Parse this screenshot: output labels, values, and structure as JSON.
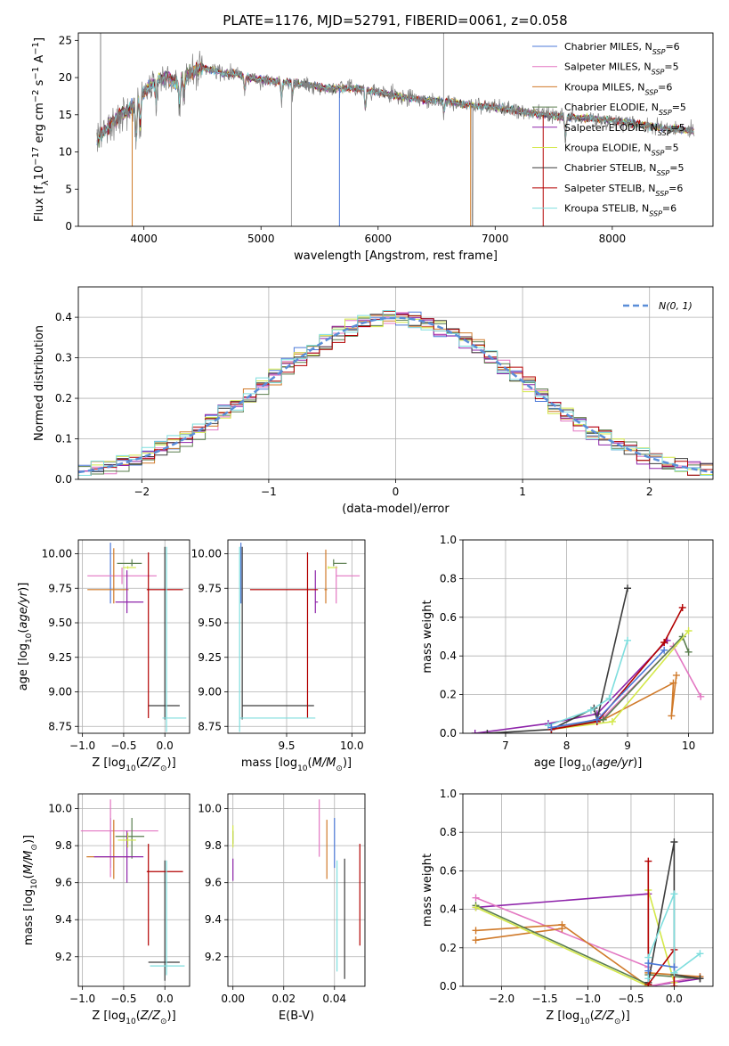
{
  "figure": {
    "title": "PLATE=1176, MJD=52791, FIBERID=0061, z=0.058",
    "model_colors": [
      "#4c79d8",
      "#e377c2",
      "#d07a2a",
      "#5a7d4e",
      "#8e24aa",
      "#d4e84a",
      "#3c3c3c",
      "#b30000",
      "#7fdede"
    ]
  },
  "chart_data": [
    {
      "id": "spectrum",
      "type": "line",
      "title": "PLATE=1176, MJD=52791, FIBERID=0061, z=0.058",
      "xlabel": "wavelength [Angstrom, rest frame]",
      "ylabel": "Flux [f_λ 10^-17 erg cm^-2 s^-1 A^-1]",
      "xlim": [
        3440,
        8860
      ],
      "ylim": [
        0,
        26
      ],
      "xticks": [
        "4000",
        "5000",
        "6000",
        "7000",
        "8000"
      ],
      "yticks": [
        "0",
        "5",
        "10",
        "15",
        "20",
        "25"
      ],
      "grid": false,
      "legend_position": "top-right",
      "data_color": "#808080",
      "continuum": {
        "x": [
          3600,
          3700,
          3800,
          3900,
          4000,
          4100,
          4200,
          4300,
          4400,
          4500,
          4600,
          4700,
          4800,
          4900,
          5000,
          5200,
          5400,
          5600,
          5800,
          6000,
          6200,
          6400,
          6600,
          6800,
          7000,
          7200,
          7400,
          7600,
          7800,
          8000,
          8200,
          8400,
          8600,
          8700
        ],
        "y": [
          11.5,
          13.5,
          15.0,
          15.8,
          18.0,
          19.5,
          20.0,
          19.3,
          20.5,
          21.3,
          21.0,
          20.5,
          20.5,
          20.0,
          19.7,
          19.5,
          19.0,
          18.5,
          18.6,
          18.0,
          17.4,
          17.0,
          16.8,
          16.3,
          16.0,
          15.5,
          15.0,
          14.7,
          14.5,
          14.3,
          13.8,
          13.3,
          13.0,
          12.8
        ]
      },
      "series": [
        {
          "name": "Chabrier MILES, N_SSP=6",
          "color": "#4c79d8"
        },
        {
          "name": "Salpeter MILES, N_SSP=5",
          "color": "#e377c2"
        },
        {
          "name": "Kroupa MILES, N_SSP=6",
          "color": "#d07a2a"
        },
        {
          "name": "Chabrier ELODIE, N_SSP=5",
          "color": "#5a7d4e"
        },
        {
          "name": "Salpeter ELODIE, N_SSP=5",
          "color": "#8e24aa"
        },
        {
          "name": "Kroupa ELODIE, N_SSP=5",
          "color": "#d4e84a"
        },
        {
          "name": "Chabrier STELIB, N_SSP=5",
          "color": "#3c3c3c"
        },
        {
          "name": "Salpeter STELIB, N_SSP=6",
          "color": "#b30000"
        },
        {
          "name": "Kroupa STELIB, N_SSP=6",
          "color": "#7fdede"
        }
      ]
    },
    {
      "id": "residuals",
      "type": "histogram",
      "xlabel": "(data-model)/error",
      "ylabel": "Normed distribution",
      "xlim": [
        -2.5,
        2.5
      ],
      "ylim": [
        0,
        0.475
      ],
      "xticks": [
        "−2",
        "−1",
        "0",
        "1",
        "2"
      ],
      "yticks": [
        "0.0",
        "0.1",
        "0.2",
        "0.3",
        "0.4"
      ],
      "grid": true,
      "legend": {
        "position": "top-right",
        "label": "N(0, 1)",
        "color": "#5a8ed8"
      },
      "bin_width": 0.1
    },
    {
      "id": "age-vs-Z",
      "type": "errorbar",
      "xlabel": "Z [log10(Z/Z⊙)]",
      "ylabel": "age [log10(age/yr)]",
      "xlim": [
        -1.05,
        0.3
      ],
      "ylim": [
        8.7,
        10.1
      ],
      "xticks": [
        "−1.0",
        "−0.5",
        "0.0"
      ],
      "yticks": [
        "8.75",
        "9.00",
        "9.25",
        "9.50",
        "9.75",
        "10.00"
      ],
      "grid": true,
      "points": [
        {
          "color": "#4c79d8",
          "x": -0.66,
          "xerr": [
            0.0,
            0.0
          ],
          "y": 9.86,
          "yerr": [
            0.22,
            0.22
          ]
        },
        {
          "color": "#e377c2",
          "x": -0.52,
          "xerr": [
            0.42,
            0.42
          ],
          "y": 9.84,
          "yerr": [
            0.06,
            0.06
          ]
        },
        {
          "color": "#d07a2a",
          "x": -0.62,
          "xerr": [
            0.32,
            0.18
          ],
          "y": 9.74,
          "yerr": [
            0.1,
            0.3
          ]
        },
        {
          "color": "#5a7d4e",
          "x": -0.4,
          "xerr": [
            0.18,
            0.12
          ],
          "y": 9.93,
          "yerr": [
            0.02,
            0.03
          ]
        },
        {
          "color": "#8e24aa",
          "x": -0.46,
          "xerr": [
            0.14,
            0.2
          ],
          "y": 9.65,
          "yerr": [
            0.08,
            0.23
          ]
        },
        {
          "color": "#d4e84a",
          "x": -0.45,
          "xerr": [
            0.06,
            0.1
          ],
          "y": 9.9,
          "yerr": [
            0.01,
            0.01
          ]
        },
        {
          "color": "#3c3c3c",
          "x": 0.0,
          "xerr": [
            0.2,
            0.18
          ],
          "y": 8.9,
          "yerr": [
            0.1,
            1.15
          ]
        },
        {
          "color": "#b30000",
          "x": -0.2,
          "xerr": [
            0.02,
            0.42
          ],
          "y": 9.74,
          "yerr": [
            0.93,
            0.27
          ]
        },
        {
          "color": "#7fdede",
          "x": 0.02,
          "xerr": [
            0.05,
            0.24
          ],
          "y": 8.81,
          "yerr": [
            0.1,
            1.24
          ]
        }
      ]
    },
    {
      "id": "age-vs-mass",
      "type": "errorbar",
      "xlabel": "mass [log10(M/M⊙)]",
      "ylabel": "",
      "xlim": [
        9.05,
        10.1
      ],
      "ylim": [
        8.7,
        10.1
      ],
      "xticks": [
        "9.5",
        "10.0"
      ],
      "yticks": [
        "8.75",
        "9.00",
        "9.25",
        "9.50",
        "9.75",
        "10.00"
      ],
      "grid": true,
      "points": [
        {
          "color": "#4c79d8",
          "x": 9.15,
          "xerr": [
            0.0,
            0.0
          ],
          "y": 9.86,
          "yerr": [
            0.22,
            0.22
          ]
        },
        {
          "color": "#e377c2",
          "x": 9.88,
          "xerr": [
            0.0,
            0.18
          ],
          "y": 9.84,
          "yerr": [
            0.2,
            0.07
          ]
        },
        {
          "color": "#d07a2a",
          "x": 9.8,
          "xerr": [
            0.01,
            0.01
          ],
          "y": 9.74,
          "yerr": [
            0.1,
            0.29
          ]
        },
        {
          "color": "#5a7d4e",
          "x": 9.86,
          "xerr": [
            0.0,
            0.1
          ],
          "y": 9.93,
          "yerr": [
            0.02,
            0.03
          ]
        },
        {
          "color": "#8e24aa",
          "x": 9.72,
          "xerr": [
            0.0,
            0.02
          ],
          "y": 9.65,
          "yerr": [
            0.08,
            0.23
          ]
        },
        {
          "color": "#d4e84a",
          "x": 9.82,
          "xerr": [
            0.0,
            0.07
          ],
          "y": 9.9,
          "yerr": [
            0.01,
            0.01
          ]
        },
        {
          "color": "#3c3c3c",
          "x": 9.16,
          "xerr": [
            0.0,
            0.55
          ],
          "y": 8.9,
          "yerr": [
            0.1,
            1.15
          ]
        },
        {
          "color": "#b30000",
          "x": 9.66,
          "xerr": [
            0.44,
            0.08
          ],
          "y": 9.74,
          "yerr": [
            0.93,
            0.27
          ]
        },
        {
          "color": "#7fdede",
          "x": 9.14,
          "xerr": [
            0.0,
            0.58
          ],
          "y": 8.81,
          "yerr": [
            0.1,
            1.24
          ]
        }
      ]
    },
    {
      "id": "weight-vs-age",
      "type": "line",
      "xlabel": "age [log10(age/yr)]",
      "ylabel": "mass weight",
      "xlim": [
        6.3,
        10.4
      ],
      "ylim": [
        0,
        1
      ],
      "xticks": [
        "7",
        "8",
        "9",
        "10"
      ],
      "yticks": [
        "0.0",
        "0.2",
        "0.4",
        "0.6",
        "0.8",
        "1.0"
      ],
      "grid": true,
      "series": [
        {
          "color": "#e377c2",
          "x": [
            7.75,
            8.6,
            9.75,
            10.2
          ],
          "y": [
            0.02,
            0.08,
            0.45,
            0.19
          ]
        },
        {
          "color": "#d07a2a",
          "x": [
            7.75,
            8.6,
            9.75,
            9.72,
            9.8
          ],
          "y": [
            0.02,
            0.07,
            0.26,
            0.09,
            0.3
          ]
        },
        {
          "color": "#5a7d4e",
          "x": [
            7.75,
            8.6,
            9.9,
            10.0
          ],
          "y": [
            0.02,
            0.07,
            0.5,
            0.42
          ]
        },
        {
          "color": "#d4e84a",
          "x": [
            7.75,
            8.75,
            10.0
          ],
          "y": [
            0.02,
            0.06,
            0.53
          ]
        },
        {
          "color": "#8e24aa",
          "x": [
            6.5,
            7.7,
            8.5,
            9.65
          ],
          "y": [
            0.0,
            0.05,
            0.1,
            0.48
          ]
        },
        {
          "color": "#3c3c3c",
          "x": [
            6.7,
            7.75,
            8.45,
            8.5,
            9.0
          ],
          "y": [
            0.0,
            0.02,
            0.13,
            0.07,
            0.75
          ]
        },
        {
          "color": "#b30000",
          "x": [
            7.75,
            8.5,
            9.6,
            9.9
          ],
          "y": [
            0.02,
            0.06,
            0.47,
            0.65
          ]
        },
        {
          "color": "#7fdede",
          "x": [
            7.7,
            8.4,
            8.7,
            9.0
          ],
          "y": [
            0.04,
            0.12,
            0.18,
            0.48
          ]
        },
        {
          "color": "#4c79d8",
          "x": [
            7.75,
            8.5,
            9.6
          ],
          "y": [
            0.03,
            0.07,
            0.43
          ]
        }
      ]
    },
    {
      "id": "mass-vs-Z",
      "type": "errorbar",
      "xlabel": "Z [log10(Z/Z⊙)]",
      "ylabel": "mass [log10(M/M⊙)]",
      "xlim": [
        -1.05,
        0.3
      ],
      "ylim": [
        9.04,
        10.08
      ],
      "xticks": [
        "−1.0",
        "−0.5",
        "0.0"
      ],
      "yticks": [
        "9.2",
        "9.4",
        "9.6",
        "9.8",
        "10.0"
      ],
      "grid": true,
      "points": [
        {
          "color": "#4c79d8",
          "x": -0.66,
          "xerr": [
            0.0,
            0.0
          ],
          "y": 9.78,
          "yerr": [
            0.1,
            0.17
          ]
        },
        {
          "color": "#e377c2",
          "x": -0.66,
          "xerr": [
            0.36,
            0.58
          ],
          "y": 9.88,
          "yerr": [
            0.25,
            0.17
          ]
        },
        {
          "color": "#d07a2a",
          "x": -0.62,
          "xerr": [
            0.33,
            0.2
          ],
          "y": 9.74,
          "yerr": [
            0.12,
            0.2
          ]
        },
        {
          "color": "#5a7d4e",
          "x": -0.4,
          "xerr": [
            0.2,
            0.15
          ],
          "y": 9.85,
          "yerr": [
            0.12,
            0.1
          ]
        },
        {
          "color": "#8e24aa",
          "x": -0.46,
          "xerr": [
            0.4,
            0.2
          ],
          "y": 9.74,
          "yerr": [
            0.14,
            0.14
          ]
        },
        {
          "color": "#d4e84a",
          "x": -0.45,
          "xerr": [
            0.12,
            0.1
          ],
          "y": 9.83,
          "yerr": [
            0.04,
            0.04
          ]
        },
        {
          "color": "#3c3c3c",
          "x": 0.0,
          "xerr": [
            0.2,
            0.18
          ],
          "y": 9.17,
          "yerr": [
            0.1,
            0.55
          ]
        },
        {
          "color": "#b30000",
          "x": -0.2,
          "xerr": [
            0.02,
            0.42
          ],
          "y": 9.66,
          "yerr": [
            0.4,
            0.15
          ]
        },
        {
          "color": "#7fdede",
          "x": 0.02,
          "xerr": [
            0.2,
            0.22
          ],
          "y": 9.15,
          "yerr": [
            0.05,
            0.57
          ]
        }
      ]
    },
    {
      "id": "mass-vs-EBV",
      "type": "errorbar",
      "xlabel": "E(B-V)",
      "ylabel": "",
      "xlim": [
        -0.002,
        0.052
      ],
      "ylim": [
        9.04,
        10.08
      ],
      "xticks": [
        "0.00",
        "0.02",
        "0.04"
      ],
      "yticks": [
        "9.2",
        "9.4",
        "9.6",
        "9.8",
        "10.0"
      ],
      "grid": true,
      "points": [
        {
          "color": "#4c79d8",
          "x": 0.04,
          "xerr": [
            0,
            0
          ],
          "y": 9.78,
          "yerr": [
            0.1,
            0.17
          ]
        },
        {
          "color": "#e377c2",
          "x": 0.034,
          "xerr": [
            0,
            0
          ],
          "y": 9.88,
          "yerr": [
            0.14,
            0.17
          ]
        },
        {
          "color": "#d07a2a",
          "x": 0.037,
          "xerr": [
            0,
            0
          ],
          "y": 9.74,
          "yerr": [
            0.12,
            0.2
          ]
        },
        {
          "color": "#5a7d4e",
          "x": 0.0,
          "xerr": [
            0,
            0
          ],
          "y": 9.85,
          "yerr": [
            0.04,
            0.03
          ]
        },
        {
          "color": "#8e24aa",
          "x": 0.0,
          "xerr": [
            0,
            0
          ],
          "y": 9.67,
          "yerr": [
            0.06,
            0.06
          ]
        },
        {
          "color": "#d4e84a",
          "x": 0.0,
          "xerr": [
            0,
            0
          ],
          "y": 9.83,
          "yerr": [
            0.04,
            0.08
          ]
        },
        {
          "color": "#3c3c3c",
          "x": 0.044,
          "xerr": [
            0,
            0
          ],
          "y": 9.3,
          "yerr": [
            0.22,
            0.43
          ]
        },
        {
          "color": "#b30000",
          "x": 0.05,
          "xerr": [
            0,
            0
          ],
          "y": 9.54,
          "yerr": [
            0.28,
            0.27
          ]
        },
        {
          "color": "#7fdede",
          "x": 0.041,
          "xerr": [
            0,
            0
          ],
          "y": 9.42,
          "yerr": [
            0.3,
            0.3
          ]
        }
      ]
    },
    {
      "id": "weight-vs-Z",
      "type": "line",
      "xlabel": "Z [log10(Z/Z⊙)]",
      "ylabel": "mass weight",
      "xlim": [
        -2.45,
        0.45
      ],
      "ylim": [
        0,
        1
      ],
      "xticks": [
        "−2.0",
        "−1.5",
        "−1.0",
        "−0.5",
        "0.0"
      ],
      "yticks": [
        "0.0",
        "0.2",
        "0.4",
        "0.6",
        "0.8",
        "1.0"
      ],
      "grid": true,
      "series": [
        {
          "color": "#8e24aa",
          "x": [
            -2.3,
            -0.3,
            -0.3,
            0.3
          ],
          "y": [
            0.41,
            0.48,
            0.0,
            0.04
          ]
        },
        {
          "color": "#e377c2",
          "x": [
            -2.3,
            -0.3,
            -0.3,
            0.3
          ],
          "y": [
            0.46,
            0.1,
            0.0,
            0.05
          ]
        },
        {
          "color": "#d07a2a",
          "x": [
            -2.3,
            -1.3,
            -0.3,
            -0.3,
            0.3
          ],
          "y": [
            0.29,
            0.32,
            0.0,
            0.07,
            0.05
          ]
        },
        {
          "color": "#d07a2a",
          "x": [
            -2.3,
            -1.3
          ],
          "y": [
            0.24,
            0.3
          ]
        },
        {
          "color": "#5a7d4e",
          "x": [
            -2.3,
            -0.3,
            -0.3,
            0.3
          ],
          "y": [
            0.42,
            0.01,
            0.06,
            0.04
          ]
        },
        {
          "color": "#d4e84a",
          "x": [
            -2.3,
            -0.3,
            -0.3,
            0.0
          ],
          "y": [
            0.41,
            0.0,
            0.5,
            0.02
          ]
        },
        {
          "color": "#3c3c3c",
          "x": [
            -0.3,
            0.0,
            0.0,
            0.3
          ],
          "y": [
            0.02,
            0.75,
            0.06,
            0.04
          ]
        },
        {
          "color": "#b30000",
          "x": [
            -0.3,
            -0.3,
            0.0,
            0.0
          ],
          "y": [
            0.65,
            0.01,
            0.19,
            0.0
          ]
        },
        {
          "color": "#7fdede",
          "x": [
            -0.3,
            -0.3,
            0.0,
            0.0,
            0.3
          ],
          "y": [
            0.04,
            0.15,
            0.48,
            0.07,
            0.17
          ]
        },
        {
          "color": "#4c79d8",
          "x": [
            -0.3,
            -0.3,
            0.0
          ],
          "y": [
            0.08,
            0.12,
            0.1
          ]
        }
      ]
    }
  ]
}
